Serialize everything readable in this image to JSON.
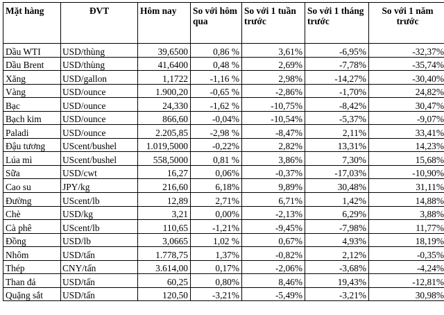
{
  "table": {
    "headers": [
      "Mặt hàng",
      "ĐVT",
      "Hôm nay",
      "So với hôm qua",
      "So với 1 tuần trước",
      "So với 1 tháng trước",
      "So với 1 năm trước"
    ],
    "rows": [
      [
        "Dầu WTI",
        "USD/thùng",
        "39,6500",
        "0,86 %",
        "3,61%",
        "-6,95%",
        "-32,37%"
      ],
      [
        "Dầu Brent",
        "USD/thùng",
        "41,6400",
        "0,48 %",
        "2,69%",
        "-7,78%",
        "-35,74%"
      ],
      [
        "Xăng",
        "USD/gallon",
        "1,1722",
        "-1,16 %",
        "2,98%",
        "-14,27%",
        "-30,40%"
      ],
      [
        "Vàng",
        "USD/ounce",
        "1.900,20",
        "-0,65 %",
        "-2,86%",
        "-1,70%",
        "24,82%"
      ],
      [
        "Bạc",
        "USD/ounce",
        "24,330",
        "-1,62 %",
        "-10,75%",
        "-8,42%",
        "30,47%"
      ],
      [
        "Bạch kim",
        "USD/ounce",
        "866,60",
        "-0,04%",
        "-10,54%",
        "-5,37%",
        "-9,07%"
      ],
      [
        "Paladi",
        "USD/ounce",
        "2.205,85",
        "-2,98 %",
        "-8,47%",
        "2,11%",
        "33,41%"
      ],
      [
        "Đậu tương",
        "UScent/bushel",
        "1.019,5000",
        "-0,22%",
        "2,82%",
        "13,31%",
        "14,23%"
      ],
      [
        "Lúa mì",
        "UScent/bushel",
        "558,5000",
        "0,81 %",
        "3,86%",
        "7,30%",
        "15,68%"
      ],
      [
        "Sữa",
        "USD/cwt",
        "16,27",
        "0,06%",
        "-0,37%",
        "-17,03%",
        "-10,90%"
      ],
      [
        "Cao su",
        "JPY/kg",
        "216,60",
        "6,18%",
        "9,89%",
        "30,48%",
        "31,11%"
      ],
      [
        "Đường",
        "UScent/lb",
        "12,89",
        "2,71%",
        "6,71%",
        "1,42%",
        "14,88%"
      ],
      [
        "Chè",
        "USD/kg",
        "3,21",
        "0,00%",
        "-2,13%",
        "6,29%",
        "3,88%"
      ],
      [
        "Cà phê",
        "UScent/lb",
        "110,65",
        "-1,21%",
        "-9,45%",
        "-7,98%",
        "11,77%"
      ],
      [
        "Đồng",
        "USD/lb",
        "3,0665",
        "1,02 %",
        "0,67%",
        "4,93%",
        "18,19%"
      ],
      [
        "Nhôm",
        "USD/tấn",
        "1.778,75",
        "1,37%",
        "-0,82%",
        "2,12%",
        "-0,35%"
      ],
      [
        "Thép",
        "CNY/tấn",
        "3.614,00",
        "0,17%",
        "-2,06%",
        "-3,68%",
        "-4,24%"
      ],
      [
        "Than đá",
        "USD/tấn",
        "60,25",
        "0,80%",
        "8,46%",
        "19,43%",
        "-12,81%"
      ],
      [
        "Quặng sắt",
        "USD/tấn",
        "120,50",
        "-3,21%",
        "-5,49%",
        "-3,21%",
        "30,98%"
      ]
    ]
  }
}
